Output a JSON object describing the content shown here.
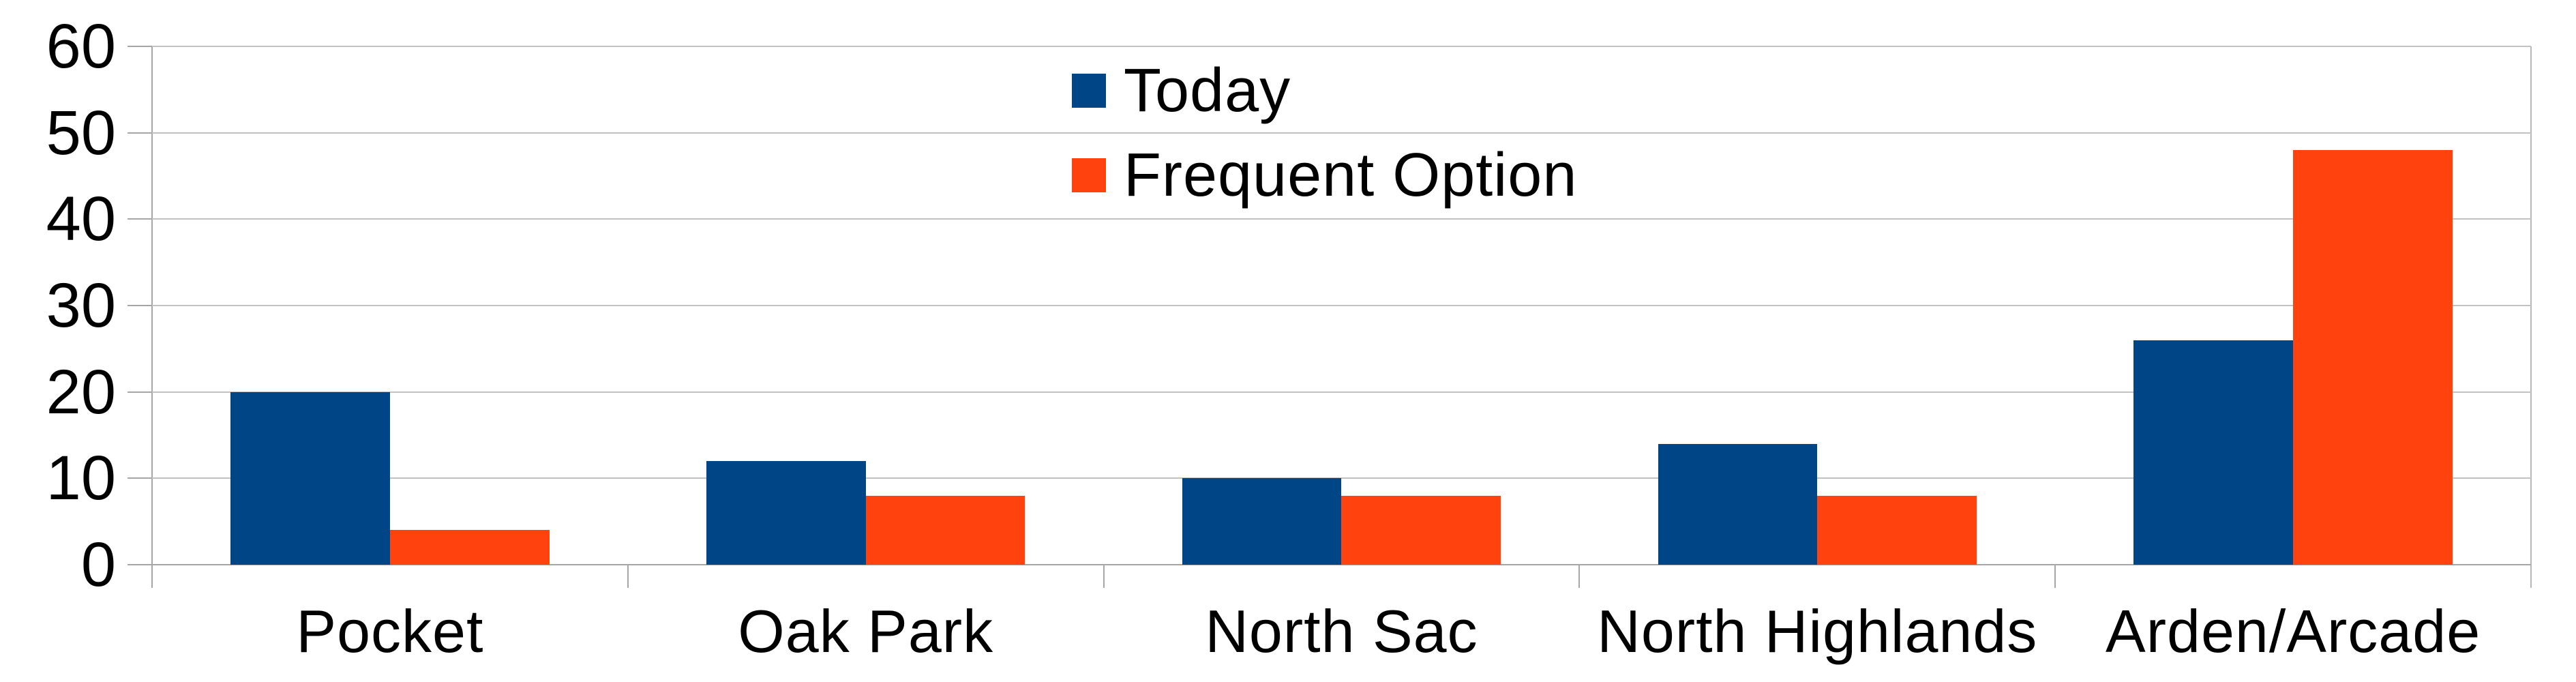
{
  "chart_data": {
    "type": "bar",
    "title": "",
    "xlabel": "",
    "ylabel": "",
    "categories": [
      "Pocket",
      "Oak Park",
      "North Sac",
      "North Highlands",
      "Arden/Arcade"
    ],
    "series": [
      {
        "name": "Today",
        "color": "#004586",
        "values": [
          20,
          12,
          10,
          14,
          26
        ]
      },
      {
        "name": "Frequent Option",
        "color": "#ff420e",
        "values": [
          4,
          8,
          8,
          8,
          48
        ]
      }
    ],
    "ylim": [
      0,
      60
    ],
    "yticks": [
      0,
      10,
      20,
      30,
      40,
      50,
      60
    ],
    "grid": true,
    "legend_position": "top-center"
  },
  "colors": {
    "background": "#ffffff",
    "gridline": "#c2c2c2",
    "axis": "#a6a6a6",
    "text": "#000000"
  }
}
